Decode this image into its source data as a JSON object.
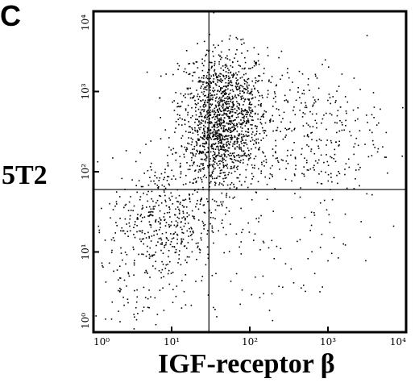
{
  "panel_label": "C",
  "chart_data": {
    "type": "scatter",
    "title": "",
    "xlabel": "IGF-receptor β",
    "ylabel": "5T2",
    "x_scale": "log",
    "y_scale": "log",
    "xlim": [
      1,
      10000
    ],
    "ylim": [
      1,
      10000
    ],
    "x_ticks": [
      {
        "value": 1,
        "label": "10⁰"
      },
      {
        "value": 10,
        "label": "10¹"
      },
      {
        "value": 100,
        "label": "10²"
      },
      {
        "value": 1000,
        "label": "10³"
      },
      {
        "value": 10000,
        "label": "10⁴"
      }
    ],
    "y_ticks": [
      {
        "value": 1,
        "label": "10⁰"
      },
      {
        "value": 10,
        "label": "10¹"
      },
      {
        "value": 100,
        "label": "10²"
      },
      {
        "value": 1000,
        "label": "10³"
      },
      {
        "value": 10000,
        "label": "10⁴"
      }
    ],
    "quadrant_gates": {
      "x": 30,
      "y": 60
    },
    "grid": false,
    "legend": "none",
    "point_color": "#000000",
    "populations": [
      {
        "center": [
          45,
          700
        ],
        "spread_decades": [
          0.28,
          0.35
        ],
        "approx_events": 900
      },
      {
        "center": [
          40,
          200
        ],
        "spread_decades": [
          0.25,
          0.3
        ],
        "approx_events": 600
      },
      {
        "center": [
          8,
          25
        ],
        "spread_decades": [
          0.35,
          0.4
        ],
        "approx_events": 450
      },
      {
        "center": [
          500,
          300
        ],
        "spread_decades": [
          0.5,
          0.45
        ],
        "approx_events": 350
      },
      {
        "center": [
          3,
          5
        ],
        "spread_decades": [
          0.45,
          0.5
        ],
        "approx_events": 120
      },
      {
        "center": [
          300,
          15
        ],
        "spread_decades": [
          0.6,
          0.5
        ],
        "approx_events": 80
      }
    ]
  }
}
